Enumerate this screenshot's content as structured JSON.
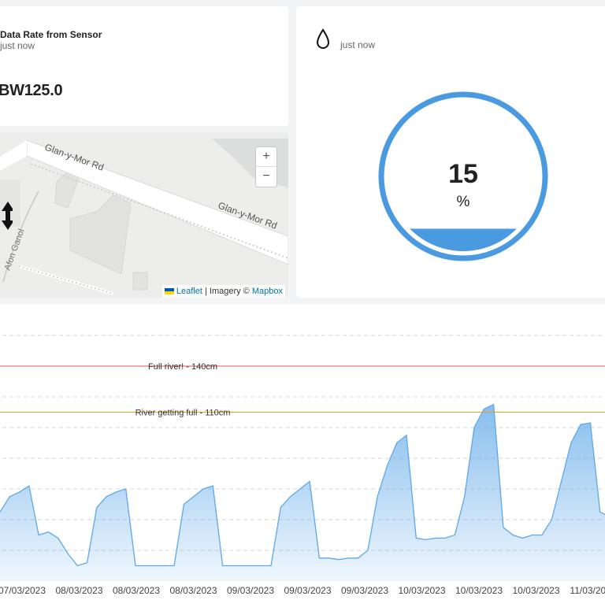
{
  "data_card": {
    "title": "Data Rate from Sensor",
    "subtitle": "just now",
    "value": "BW125.0"
  },
  "gauge_card": {
    "icon": "water-drop-icon",
    "subtitle": "just now",
    "value": "15",
    "unit": "%",
    "level_percent": 15,
    "color": "#4a9ae1"
  },
  "map_card": {
    "roads": [
      "Glan-y-Mor Rd",
      "Glan-y-Mor Rd",
      "Afon Ganol"
    ],
    "zoom_in_label": "+",
    "zoom_out_label": "−",
    "attribution": {
      "leaflet": "Leaflet",
      "separator": " | Imagery © ",
      "mapbox": "Mapbox"
    }
  },
  "chart_data": {
    "type": "area",
    "x_tick_labels": [
      "07/03/2023",
      "08/03/2023",
      "08/03/2023",
      "08/03/2023",
      "09/03/2023",
      "09/03/2023",
      "09/03/2023",
      "10/03/2023",
      "10/03/2023",
      "10/03/2023",
      "11/03/2023"
    ],
    "ylim": [
      0,
      160
    ],
    "grid": true,
    "series_color": "#5fa8e8",
    "thresholds": [
      {
        "label": "Full river! - 140cm",
        "value": 140,
        "color": "#e05050"
      },
      {
        "label": "River getting full - 110cm",
        "value": 110,
        "color": "#e5a020"
      }
    ],
    "values": [
      45,
      55,
      58,
      62,
      30,
      32,
      28,
      18,
      10,
      12,
      48,
      55,
      58,
      60,
      10,
      10,
      10,
      10,
      10,
      50,
      55,
      60,
      62,
      10,
      10,
      10,
      10,
      10,
      10,
      48,
      55,
      60,
      65,
      15,
      15,
      14,
      15,
      15,
      20,
      55,
      75,
      90,
      95,
      28,
      27,
      28,
      28,
      30,
      55,
      100,
      112,
      115,
      35,
      30,
      28,
      30,
      30,
      40,
      65,
      90,
      102,
      103,
      45,
      42
    ]
  }
}
